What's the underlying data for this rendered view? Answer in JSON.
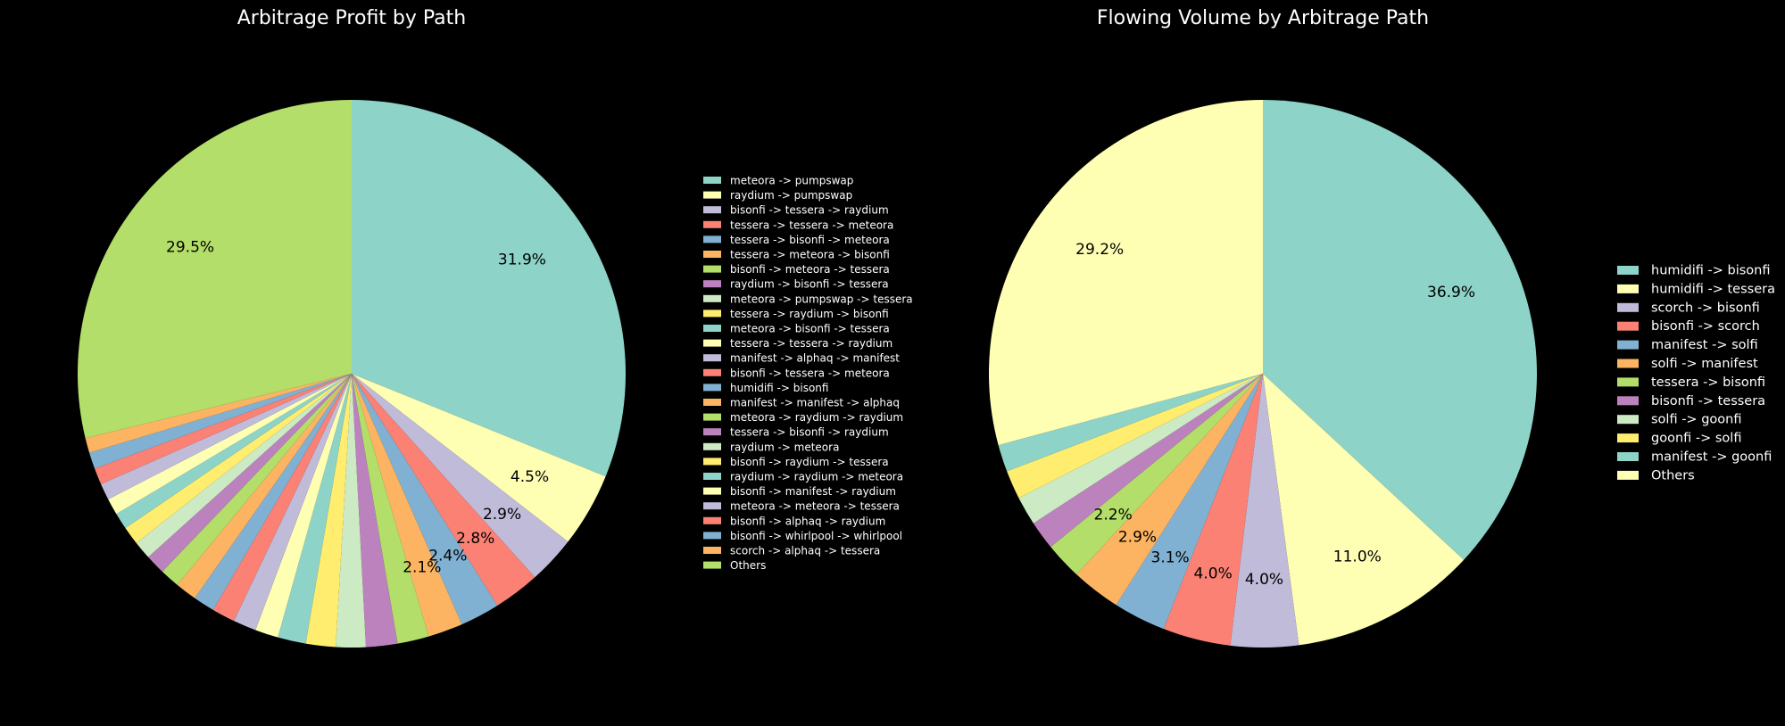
{
  "palette": [
    "#8dd3c7",
    "#feffb3",
    "#bfbbd9",
    "#fa8174",
    "#81b1d2",
    "#fdb462",
    "#b3de69",
    "#bc82bd",
    "#ccebc4",
    "#ffed6f"
  ],
  "chart_data": [
    {
      "type": "pie",
      "title": "Arbitrage Profit by Path",
      "start_angle": 90,
      "direction": "clockwise",
      "legend_position": "right",
      "slices": [
        {
          "label": "meteora -> pumpswap",
          "value": 31.9,
          "pct_label": "31.9%"
        },
        {
          "label": "raydium -> pumpswap",
          "value": 4.5,
          "pct_label": "4.5%"
        },
        {
          "label": "bisonfi -> tessera -> raydium",
          "value": 2.9,
          "pct_label": "2.9%"
        },
        {
          "label": "tessera -> tessera -> meteora",
          "value": 2.8,
          "pct_label": "2.8%"
        },
        {
          "label": "tessera -> bisonfi -> meteora",
          "value": 2.4,
          "pct_label": "2.4%"
        },
        {
          "label": "tessera -> meteora -> bisonfi",
          "value": 2.1,
          "pct_label": "2.1%"
        },
        {
          "label": "bisonfi -> meteora -> tessera",
          "value": 1.9,
          "pct_label": ""
        },
        {
          "label": "raydium -> bisonfi -> tessera",
          "value": 1.9,
          "pct_label": ""
        },
        {
          "label": "meteora -> pumpswap -> tessera",
          "value": 1.8,
          "pct_label": ""
        },
        {
          "label": "tessera -> raydium -> bisonfi",
          "value": 1.8,
          "pct_label": ""
        },
        {
          "label": "meteora -> bisonfi -> tessera",
          "value": 1.7,
          "pct_label": ""
        },
        {
          "label": "tessera -> tessera -> raydium",
          "value": 1.4,
          "pct_label": ""
        },
        {
          "label": "manifest -> alphaq -> manifest",
          "value": 1.4,
          "pct_label": ""
        },
        {
          "label": "bisonfi -> tessera -> meteora",
          "value": 1.4,
          "pct_label": ""
        },
        {
          "label": "humidifi -> bisonfi",
          "value": 1.3,
          "pct_label": ""
        },
        {
          "label": "manifest -> manifest -> alphaq",
          "value": 1.3,
          "pct_label": ""
        },
        {
          "label": "meteora -> raydium -> raydium",
          "value": 1.2,
          "pct_label": ""
        },
        {
          "label": "tessera -> bisonfi -> raydium",
          "value": 1.2,
          "pct_label": ""
        },
        {
          "label": "raydium -> meteora",
          "value": 1.1,
          "pct_label": ""
        },
        {
          "label": "bisonfi -> raydium -> tessera",
          "value": 1.1,
          "pct_label": ""
        },
        {
          "label": "raydium -> raydium -> meteora",
          "value": 1.0,
          "pct_label": ""
        },
        {
          "label": "bisonfi -> manifest -> raydium",
          "value": 1.0,
          "pct_label": ""
        },
        {
          "label": "meteora -> meteora -> tessera",
          "value": 1.0,
          "pct_label": ""
        },
        {
          "label": "bisonfi -> alphaq -> raydium",
          "value": 1.0,
          "pct_label": ""
        },
        {
          "label": "bisonfi -> whirlpool -> whirlpool",
          "value": 1.0,
          "pct_label": ""
        },
        {
          "label": "scorch -> alphaq -> tessera",
          "value": 0.9,
          "pct_label": ""
        },
        {
          "label": "Others",
          "value": 29.5,
          "pct_label": "29.5%"
        }
      ]
    },
    {
      "type": "pie",
      "title": "Flowing Volume by Arbitrage Path",
      "start_angle": 90,
      "direction": "clockwise",
      "legend_position": "right",
      "slices": [
        {
          "label": "humidifi -> bisonfi",
          "value": 36.9,
          "pct_label": "36.9%"
        },
        {
          "label": "humidifi -> tessera",
          "value": 11.0,
          "pct_label": "11.0%"
        },
        {
          "label": "scorch -> bisonfi",
          "value": 4.0,
          "pct_label": "4.0%"
        },
        {
          "label": "bisonfi -> scorch",
          "value": 4.0,
          "pct_label": "4.0%"
        },
        {
          "label": "manifest -> solfi",
          "value": 3.1,
          "pct_label": "3.1%"
        },
        {
          "label": "solfi -> manifest",
          "value": 2.9,
          "pct_label": "2.9%"
        },
        {
          "label": "tessera -> bisonfi",
          "value": 2.2,
          "pct_label": "2.2%"
        },
        {
          "label": "bisonfi -> tessera",
          "value": 1.7,
          "pct_label": ""
        },
        {
          "label": "solfi -> goonfi",
          "value": 1.7,
          "pct_label": ""
        },
        {
          "label": "goonfi -> solfi",
          "value": 1.7,
          "pct_label": ""
        },
        {
          "label": "manifest -> goonfi",
          "value": 1.6,
          "pct_label": ""
        },
        {
          "label": "Others",
          "value": 29.2,
          "pct_label": "29.2%"
        }
      ]
    }
  ]
}
